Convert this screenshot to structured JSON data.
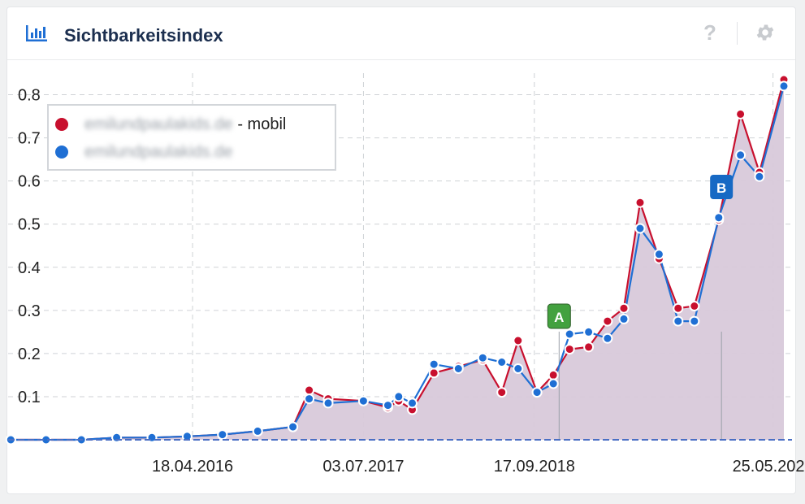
{
  "widget": {
    "title": "Sichtbarkeitsindex",
    "icons": [
      "bar-chart-icon",
      "help-icon",
      "gear-icon"
    ],
    "help_glyph": "?"
  },
  "legend": {
    "items": [
      {
        "label_blurred": "emilundpaulakids.de",
        "suffix": " - mobil",
        "color": "#c8102e"
      },
      {
        "label_blurred": "emilundpaulakids.de",
        "suffix": "",
        "color": "#1f6fd4"
      }
    ]
  },
  "events": [
    {
      "label": "A",
      "date": "2018-11-20",
      "color": "#43a13f"
    },
    {
      "label": "B",
      "date": "2020-01-13",
      "color": "#1769c4"
    }
  ],
  "chart_data": {
    "type": "area",
    "x_type": "date",
    "xlabel": "",
    "ylabel": "",
    "ylim": [
      0,
      0.85
    ],
    "yticks": [
      "0.1",
      "0.2",
      "0.3",
      "0.4",
      "0.5",
      "0.6",
      "0.7",
      "0.8"
    ],
    "xticks": [
      "18.04.2016",
      "03.07.2017",
      "17.09.2018",
      "25.05.2020"
    ],
    "grid": true,
    "legend_position": "top-left",
    "series": [
      {
        "name": "- mobil",
        "color": "#c8102e",
        "points": [
          [
            "2015-01-05",
            0.0
          ],
          [
            "2015-04-06",
            0.0
          ],
          [
            "2015-07-06",
            0.0
          ],
          [
            "2015-10-05",
            0.005
          ],
          [
            "2016-01-04",
            0.005
          ],
          [
            "2016-04-04",
            0.008
          ],
          [
            "2016-07-04",
            0.012
          ],
          [
            "2016-10-03",
            0.02
          ],
          [
            "2017-01-02",
            0.03
          ],
          [
            "2017-02-13",
            0.115
          ],
          [
            "2017-04-03",
            0.095
          ],
          [
            "2017-07-03",
            0.09
          ],
          [
            "2017-09-04",
            0.075
          ],
          [
            "2017-10-02",
            0.09
          ],
          [
            "2017-11-06",
            0.07
          ],
          [
            "2018-01-01",
            0.155
          ],
          [
            "2018-03-05",
            0.17
          ],
          [
            "2018-05-07",
            0.185
          ],
          [
            "2018-06-25",
            0.11
          ],
          [
            "2018-08-06",
            0.23
          ],
          [
            "2018-09-24",
            0.11
          ],
          [
            "2018-11-05",
            0.15
          ],
          [
            "2018-12-17",
            0.21
          ],
          [
            "2019-02-04",
            0.215
          ],
          [
            "2019-03-25",
            0.275
          ],
          [
            "2019-05-06",
            0.305
          ],
          [
            "2019-06-17",
            0.55
          ],
          [
            "2019-08-05",
            0.42
          ],
          [
            "2019-09-23",
            0.305
          ],
          [
            "2019-11-04",
            0.31
          ],
          [
            "2020-01-06",
            0.51
          ],
          [
            "2020-03-02",
            0.755
          ],
          [
            "2020-04-20",
            0.62
          ],
          [
            "2020-06-22",
            0.835
          ]
        ]
      },
      {
        "name": "",
        "color": "#1f6fd4",
        "points": [
          [
            "2015-01-05",
            0.0
          ],
          [
            "2015-04-06",
            0.0
          ],
          [
            "2015-07-06",
            0.0
          ],
          [
            "2015-10-05",
            0.005
          ],
          [
            "2016-01-04",
            0.005
          ],
          [
            "2016-04-04",
            0.008
          ],
          [
            "2016-07-04",
            0.012
          ],
          [
            "2016-10-03",
            0.02
          ],
          [
            "2017-01-02",
            0.03
          ],
          [
            "2017-02-13",
            0.095
          ],
          [
            "2017-04-03",
            0.085
          ],
          [
            "2017-07-03",
            0.09
          ],
          [
            "2017-09-04",
            0.08
          ],
          [
            "2017-10-02",
            0.1
          ],
          [
            "2017-11-06",
            0.085
          ],
          [
            "2018-01-01",
            0.175
          ],
          [
            "2018-03-05",
            0.165
          ],
          [
            "2018-05-07",
            0.19
          ],
          [
            "2018-06-25",
            0.18
          ],
          [
            "2018-08-06",
            0.165
          ],
          [
            "2018-09-24",
            0.11
          ],
          [
            "2018-11-05",
            0.13
          ],
          [
            "2018-12-17",
            0.245
          ],
          [
            "2019-02-04",
            0.25
          ],
          [
            "2019-03-25",
            0.235
          ],
          [
            "2019-05-06",
            0.28
          ],
          [
            "2019-06-17",
            0.49
          ],
          [
            "2019-08-05",
            0.43
          ],
          [
            "2019-09-23",
            0.275
          ],
          [
            "2019-11-04",
            0.275
          ],
          [
            "2020-01-06",
            0.515
          ],
          [
            "2020-03-02",
            0.66
          ],
          [
            "2020-04-20",
            0.61
          ],
          [
            "2020-06-22",
            0.82
          ]
        ]
      }
    ]
  }
}
